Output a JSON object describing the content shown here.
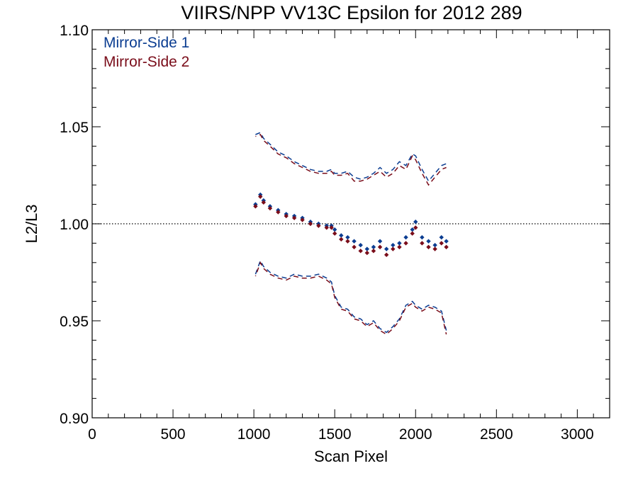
{
  "colors": {
    "series1": "#0b3d91",
    "series2": "#7a0d1a",
    "axis": "#000000",
    "background": "#ffffff"
  },
  "chart_data": {
    "type": "scatter",
    "title": "VIIRS/NPP VV13C Epsilon for 2012 289",
    "xlabel": "Scan Pixel",
    "ylabel": "L2/L3",
    "xlim": [
      0,
      3200
    ],
    "ylim": [
      0.9,
      1.1
    ],
    "xticks": [
      0,
      500,
      1000,
      1500,
      2000,
      2500,
      3000
    ],
    "xtick_labels": [
      "0",
      "500",
      "1000",
      "1500",
      "2000",
      "2500",
      "3000"
    ],
    "yticks": [
      0.9,
      0.95,
      1.0,
      1.05,
      1.1
    ],
    "ytick_labels": [
      "0.90",
      "0.95",
      "1.00",
      "1.05",
      "1.10"
    ],
    "reference_line": 1.0,
    "legend_position": "top-left",
    "grid": false,
    "x": [
      1010,
      1040,
      1060,
      1100,
      1150,
      1200,
      1250,
      1300,
      1350,
      1400,
      1450,
      1480,
      1500,
      1540,
      1580,
      1620,
      1660,
      1700,
      1740,
      1780,
      1820,
      1860,
      1900,
      1940,
      1980,
      2000,
      2040,
      2080,
      2120,
      2160,
      2190
    ],
    "series": [
      {
        "name": "Mirror-Side 1",
        "values": [
          1.01,
          1.015,
          1.012,
          1.009,
          1.007,
          1.005,
          1.004,
          1.003,
          1.001,
          1.0,
          0.999,
          0.999,
          0.997,
          0.994,
          0.993,
          0.991,
          0.989,
          0.987,
          0.988,
          0.991,
          0.987,
          0.989,
          0.99,
          0.993,
          0.997,
          1.001,
          0.993,
          0.991,
          0.989,
          0.993,
          0.991
        ],
        "upper": [
          1.046,
          1.047,
          1.044,
          1.041,
          1.037,
          1.035,
          1.032,
          1.03,
          1.028,
          1.027,
          1.027,
          1.028,
          1.026,
          1.026,
          1.027,
          1.024,
          1.023,
          1.024,
          1.026,
          1.029,
          1.026,
          1.028,
          1.032,
          1.03,
          1.036,
          1.035,
          1.028,
          1.022,
          1.026,
          1.03,
          1.031
        ],
        "lower": [
          0.974,
          0.981,
          0.978,
          0.975,
          0.973,
          0.972,
          0.974,
          0.973,
          0.973,
          0.974,
          0.972,
          0.97,
          0.963,
          0.957,
          0.956,
          0.952,
          0.951,
          0.948,
          0.95,
          0.946,
          0.944,
          0.947,
          0.951,
          0.958,
          0.96,
          0.958,
          0.956,
          0.958,
          0.957,
          0.955,
          0.945
        ]
      },
      {
        "name": "Mirror-Side 2",
        "values": [
          1.009,
          1.014,
          1.011,
          1.008,
          1.006,
          1.004,
          1.003,
          1.002,
          1.0,
          0.999,
          0.998,
          0.998,
          0.995,
          0.992,
          0.991,
          0.988,
          0.986,
          0.985,
          0.986,
          0.988,
          0.984,
          0.987,
          0.988,
          0.99,
          0.995,
          0.998,
          0.99,
          0.988,
          0.987,
          0.99,
          0.988
        ],
        "upper": [
          1.045,
          1.046,
          1.043,
          1.04,
          1.036,
          1.034,
          1.031,
          1.029,
          1.027,
          1.026,
          1.026,
          1.027,
          1.025,
          1.025,
          1.026,
          1.022,
          1.022,
          1.023,
          1.025,
          1.027,
          1.024,
          1.026,
          1.03,
          1.028,
          1.035,
          1.033,
          1.026,
          1.02,
          1.024,
          1.028,
          1.029
        ],
        "lower": [
          0.973,
          0.98,
          0.977,
          0.974,
          0.972,
          0.971,
          0.973,
          0.972,
          0.972,
          0.973,
          0.971,
          0.969,
          0.962,
          0.956,
          0.955,
          0.951,
          0.95,
          0.947,
          0.949,
          0.945,
          0.943,
          0.946,
          0.95,
          0.957,
          0.959,
          0.957,
          0.955,
          0.957,
          0.956,
          0.954,
          0.943
        ]
      }
    ]
  }
}
